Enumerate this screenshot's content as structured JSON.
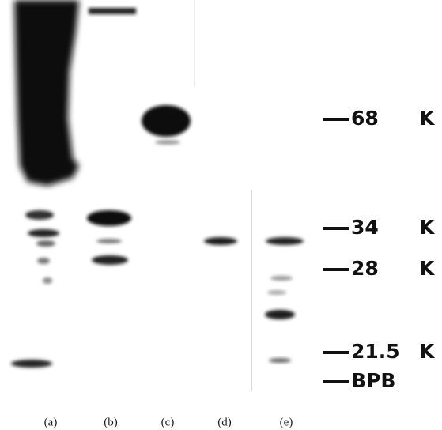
{
  "markers": [
    {
      "label": "68",
      "unit": "K"
    },
    {
      "label": "34",
      "unit": "K"
    },
    {
      "label": "28",
      "unit": "K"
    },
    {
      "label": "21.5",
      "unit": "K"
    },
    {
      "label": "BPB"
    }
  ],
  "lanes": [
    {
      "label": "(a)"
    },
    {
      "label": "(b)"
    },
    {
      "label": "(c)"
    },
    {
      "label": "(d)"
    },
    {
      "label": "(e)"
    }
  ]
}
